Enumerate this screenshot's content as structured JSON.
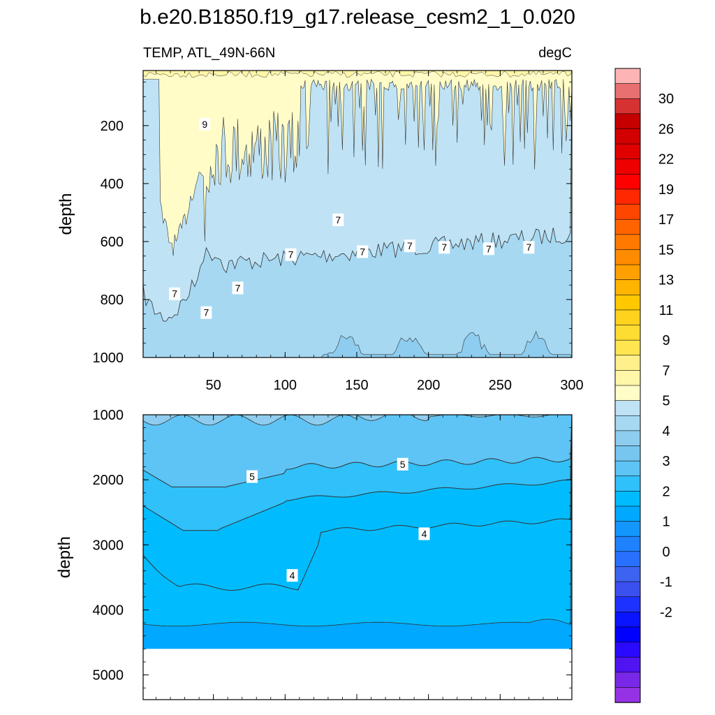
{
  "chart_data": {
    "type": "heatmap",
    "title": "b.e20.B1850.f19_g17.release_cesm2_1_0.020",
    "variable_label": "TEMP, ATL_49N-66N",
    "units_label": "degC",
    "panels": [
      {
        "name": "upper",
        "xlabel": "",
        "ylabel": "depth",
        "xlim": [
          1,
          300
        ],
        "ylim": [
          1000,
          10
        ],
        "x_ticks": [
          50,
          100,
          150,
          200,
          250,
          300
        ],
        "y_ticks": [
          200,
          400,
          600,
          800,
          1000
        ],
        "contour_labels": [
          {
            "text": "9",
            "x": 44,
            "y": 195
          },
          {
            "text": "7",
            "x": 23,
            "y": 780
          },
          {
            "text": "7",
            "x": 45,
            "y": 845
          },
          {
            "text": "7",
            "x": 67,
            "y": 760
          },
          {
            "text": "7",
            "x": 104,
            "y": 645
          },
          {
            "text": "7",
            "x": 137,
            "y": 525
          },
          {
            "text": "7",
            "x": 154,
            "y": 635
          },
          {
            "text": "7",
            "x": 187,
            "y": 615
          },
          {
            "text": "7",
            "x": 211,
            "y": 620
          },
          {
            "text": "7",
            "x": 242,
            "y": 625
          },
          {
            "text": "7",
            "x": 270,
            "y": 620
          }
        ]
      },
      {
        "name": "lower",
        "xlabel": "",
        "ylabel": "depth",
        "xlim": [
          1,
          300
        ],
        "ylim": [
          5380,
          1000
        ],
        "x_ticks": [],
        "y_ticks": [
          1000,
          2000,
          3000,
          4000,
          5000
        ],
        "bottom_depth": 4600,
        "contour_labels": [
          {
            "text": "5",
            "x": 77,
            "y": 1950
          },
          {
            "text": "5",
            "x": 182,
            "y": 1760
          },
          {
            "text": "4",
            "x": 197,
            "y": 2830
          },
          {
            "text": "4",
            "x": 105,
            "y": 3470
          }
        ]
      }
    ],
    "colorbar": {
      "labels": [
        "30",
        "26",
        "22",
        "19",
        "17",
        "15",
        "13",
        "11",
        "9",
        "7",
        "5",
        "4",
        "3",
        "2",
        "1",
        "0",
        "-1",
        "-2"
      ],
      "colors": [
        "#fcb4b4",
        "#e87070",
        "#d63232",
        "#c40000",
        "#d20000",
        "#e00000",
        "#ee0000",
        "#ff0000",
        "#ff2800",
        "#ff4600",
        "#ff6400",
        "#ff7800",
        "#ff8c00",
        "#ffa000",
        "#ffb400",
        "#ffc800",
        "#ffd21e",
        "#ffdc32",
        "#ffe650",
        "#fff08c",
        "#fff6a8",
        "#fffcc8",
        "#bfe3f5",
        "#a6d8f2",
        "#8ecdef",
        "#76c6f0",
        "#5ec4f5",
        "#30c0fa",
        "#00bcff",
        "#00a8ff",
        "#1496ff",
        "#1e82ff",
        "#2870ff",
        "#3c64f0",
        "#3c50f0",
        "#1e32ff",
        "#0a14ff",
        "#0000ff",
        "#2a0aff",
        "#5014f0",
        "#7828e6",
        "#9632e6"
      ]
    }
  }
}
